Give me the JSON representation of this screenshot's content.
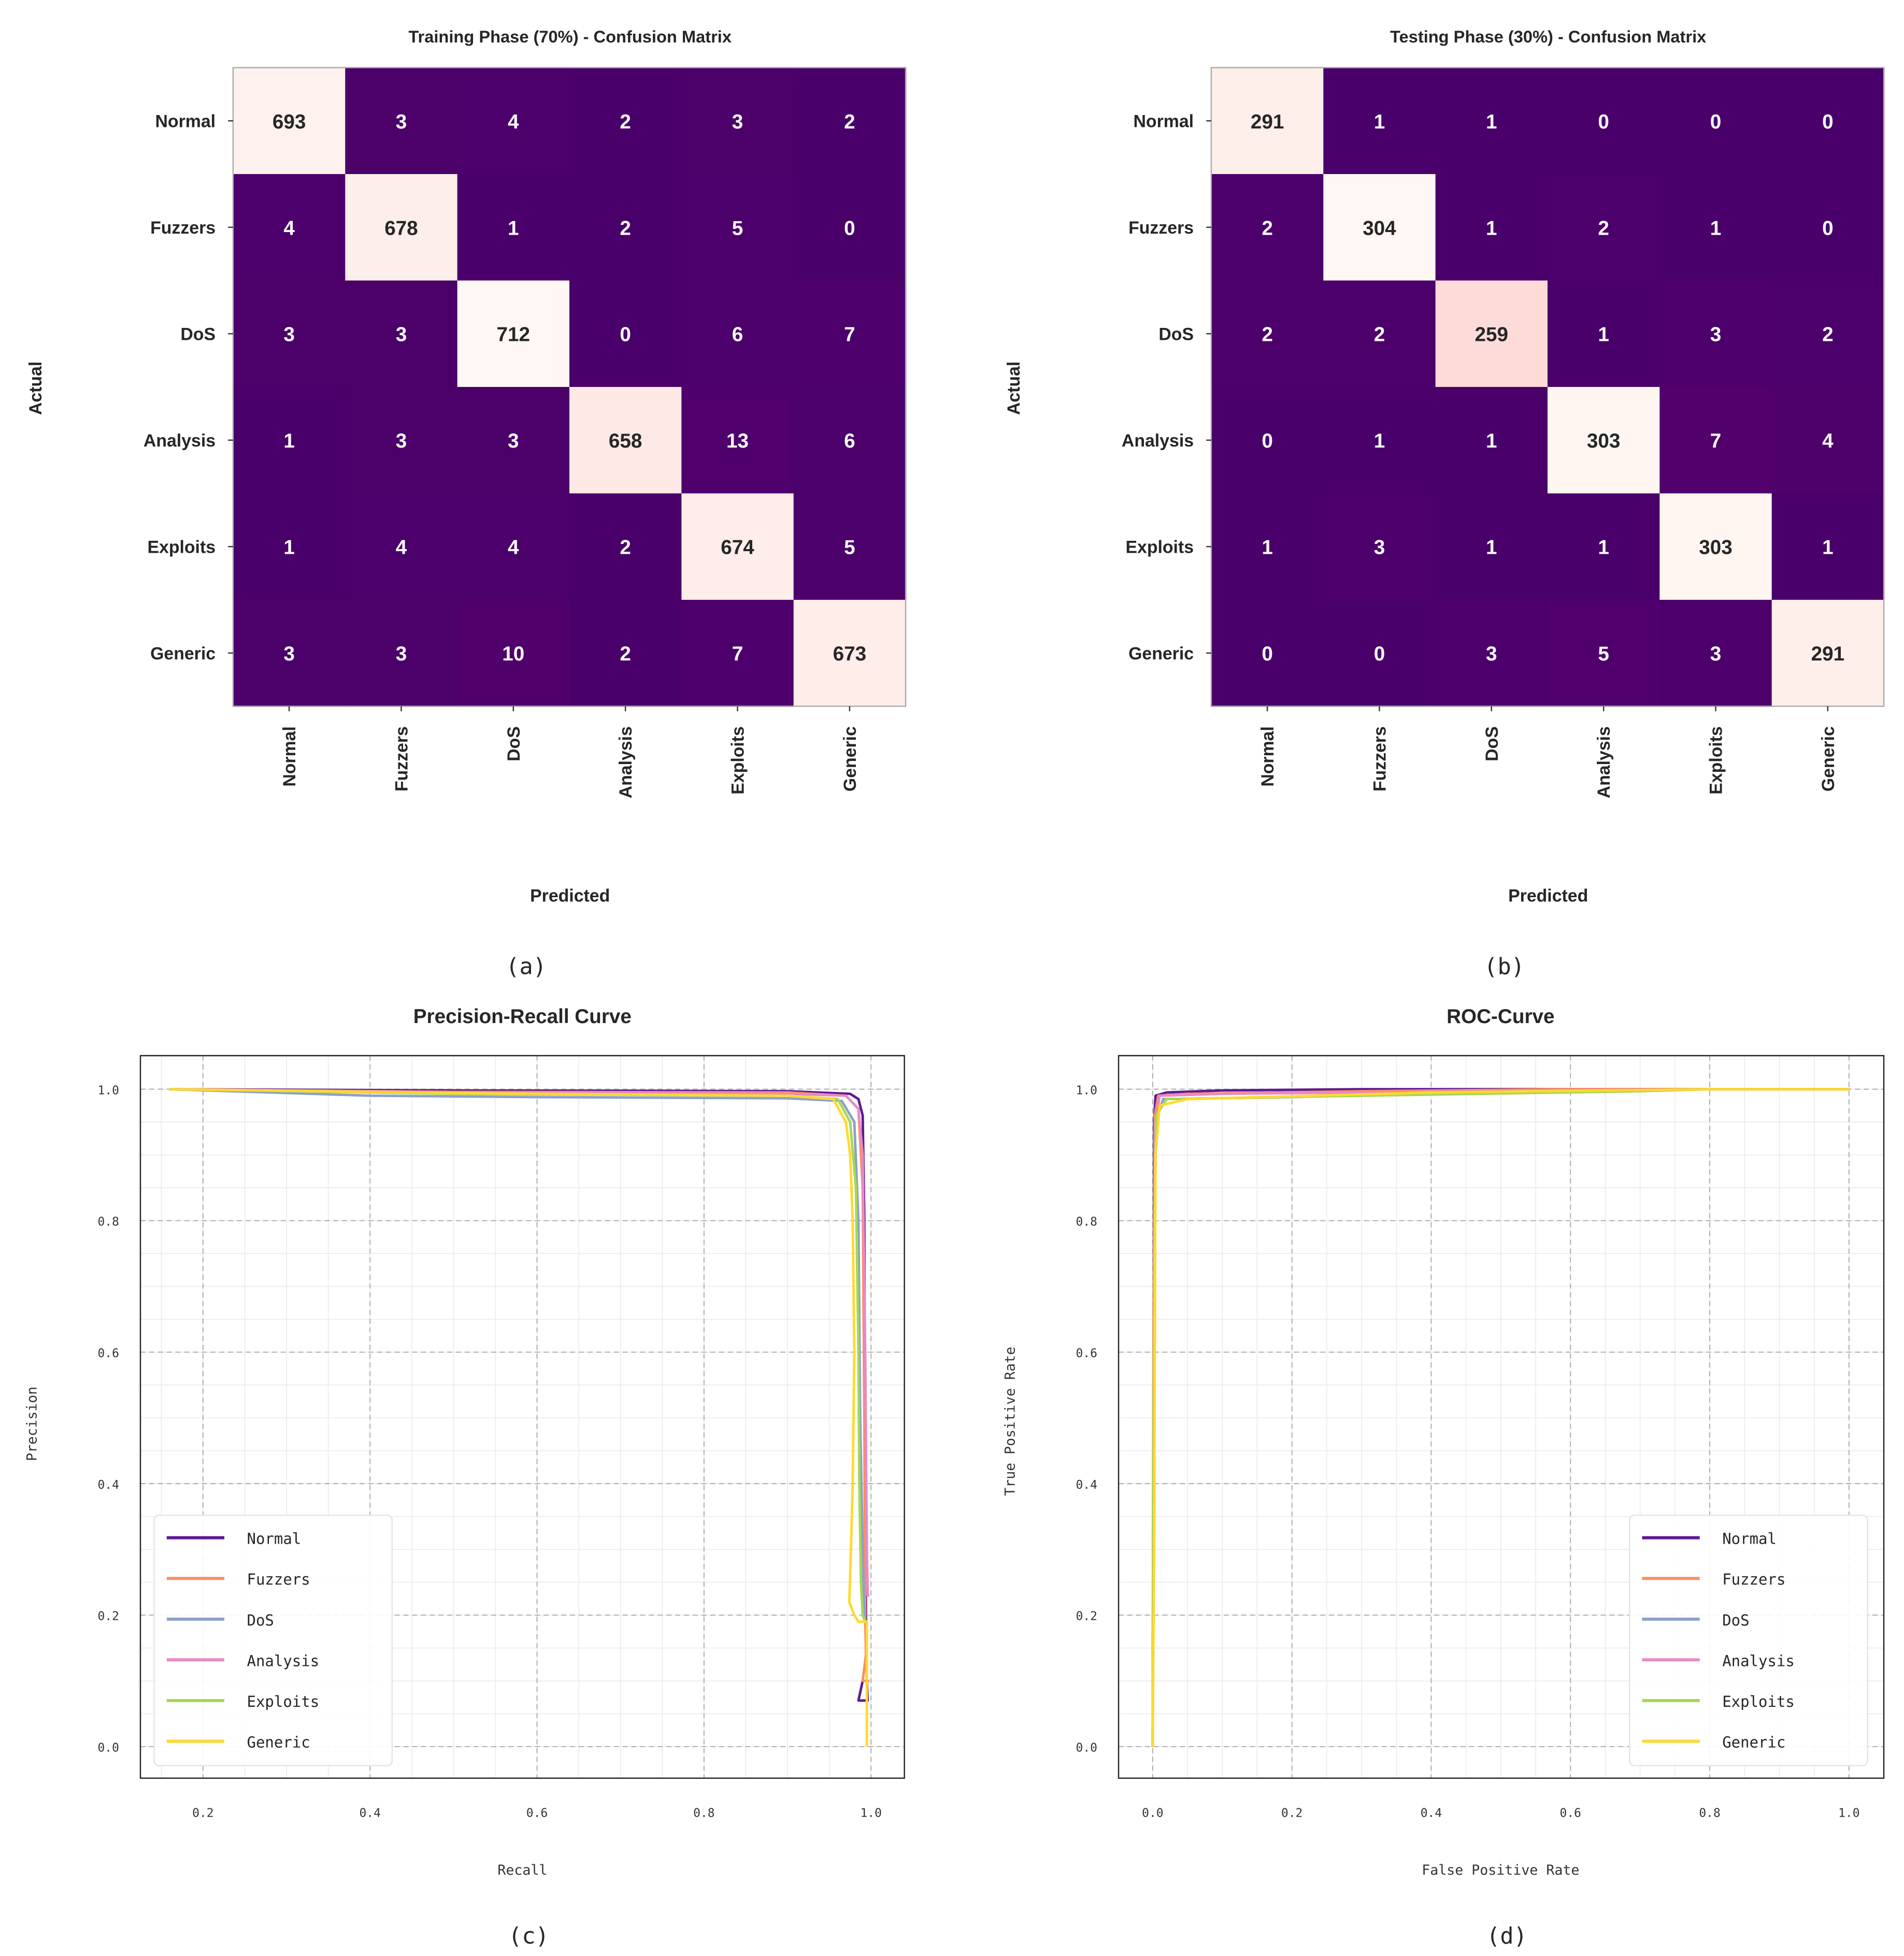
{
  "chart_data": [
    {
      "type": "heatmap",
      "title": "Training Phase (70%) - Confusion Matrix",
      "xlabel": "Predicted",
      "ylabel": "Actual",
      "panel": "(a)",
      "labels": [
        "Normal",
        "Fuzzers",
        "DoS",
        "Analysis",
        "Exploits",
        "Generic"
      ],
      "matrix": [
        [
          693,
          3,
          4,
          2,
          3,
          2
        ],
        [
          4,
          678,
          1,
          2,
          5,
          0
        ],
        [
          3,
          3,
          712,
          0,
          6,
          7
        ],
        [
          1,
          3,
          3,
          658,
          13,
          6
        ],
        [
          1,
          4,
          4,
          2,
          674,
          5
        ],
        [
          3,
          3,
          10,
          2,
          7,
          673
        ]
      ],
      "colormap": "RdPu_r"
    },
    {
      "type": "heatmap",
      "title": "Testing Phase (30%) - Confusion Matrix",
      "xlabel": "Predicted",
      "ylabel": "Actual",
      "panel": "(b)",
      "labels": [
        "Normal",
        "Fuzzers",
        "DoS",
        "Analysis",
        "Exploits",
        "Generic"
      ],
      "matrix": [
        [
          291,
          1,
          1,
          0,
          0,
          0
        ],
        [
          2,
          304,
          1,
          2,
          1,
          0
        ],
        [
          2,
          2,
          259,
          1,
          3,
          2
        ],
        [
          0,
          1,
          1,
          303,
          7,
          4
        ],
        [
          1,
          3,
          1,
          1,
          303,
          1
        ],
        [
          0,
          0,
          3,
          5,
          3,
          291
        ]
      ],
      "colormap": "RdPu_r"
    },
    {
      "type": "line",
      "title": "Precision-Recall Curve",
      "xlabel": "Recall",
      "ylabel": "Precision",
      "panel": "(c)",
      "xlim": [
        0.125,
        1.04
      ],
      "ylim": [
        -0.048,
        1.051
      ],
      "xticks": [
        "0.2",
        "0.4",
        "0.6",
        "0.8",
        "1.0"
      ],
      "xtick_values": [
        0.2,
        0.4,
        0.6,
        0.8,
        1.0
      ],
      "yticks": [
        "0.0",
        "0.2",
        "0.4",
        "0.6",
        "0.8",
        "1.0"
      ],
      "ytick_values": [
        0.0,
        0.2,
        0.4,
        0.6,
        0.8,
        1.0
      ],
      "grid": true,
      "legend_position": "lower-left",
      "series": [
        {
          "name": "Normal",
          "color": "#5c1a94",
          "points": [
            [
              0.16,
              1.0
            ],
            [
              0.5,
              0.998
            ],
            [
              0.9,
              0.997
            ],
            [
              0.975,
              0.993
            ],
            [
              0.985,
              0.985
            ],
            [
              0.99,
              0.96
            ],
            [
              0.992,
              0.8
            ],
            [
              0.993,
              0.4
            ],
            [
              0.994,
              0.2
            ],
            [
              0.995,
              0.1
            ],
            [
              0.996,
              0.07
            ],
            [
              0.985,
              0.07
            ],
            [
              0.99,
              0.1
            ]
          ]
        },
        {
          "name": "Fuzzers",
          "color": "#fc8d62",
          "points": [
            [
              0.16,
              1.0
            ],
            [
              0.5,
              0.996
            ],
            [
              0.9,
              0.995
            ],
            [
              0.97,
              0.99
            ],
            [
              0.985,
              0.97
            ],
            [
              0.99,
              0.85
            ],
            [
              0.992,
              0.5
            ],
            [
              0.993,
              0.2
            ],
            [
              0.994,
              0.14
            ],
            [
              0.99,
              0.1
            ],
            [
              0.998,
              0.1
            ]
          ]
        },
        {
          "name": "DoS",
          "color": "#8da0cb",
          "points": [
            [
              0.16,
              1.0
            ],
            [
              0.4,
              0.99
            ],
            [
              0.6,
              0.988
            ],
            [
              0.9,
              0.986
            ],
            [
              0.965,
              0.982
            ],
            [
              0.98,
              0.95
            ],
            [
              0.985,
              0.8
            ],
            [
              0.987,
              0.5
            ],
            [
              0.99,
              0.3
            ],
            [
              0.992,
              0.2
            ],
            [
              0.995,
              0.18
            ]
          ]
        },
        {
          "name": "Analysis",
          "color": "#e78ac3",
          "points": [
            [
              0.16,
              1.0
            ],
            [
              0.5,
              0.995
            ],
            [
              0.9,
              0.993
            ],
            [
              0.97,
              0.99
            ],
            [
              0.985,
              0.97
            ],
            [
              0.99,
              0.9
            ],
            [
              0.993,
              0.6
            ],
            [
              0.995,
              0.3
            ],
            [
              0.996,
              0.23
            ],
            [
              0.998,
              0.23
            ]
          ]
        },
        {
          "name": "Exploits",
          "color": "#a6d854",
          "points": [
            [
              0.16,
              1.0
            ],
            [
              0.5,
              0.993
            ],
            [
              0.9,
              0.99
            ],
            [
              0.96,
              0.985
            ],
            [
              0.975,
              0.95
            ],
            [
              0.982,
              0.85
            ],
            [
              0.985,
              0.6
            ],
            [
              0.986,
              0.4
            ],
            [
              0.988,
              0.25
            ],
            [
              0.99,
              0.2
            ],
            [
              0.993,
              0.19
            ]
          ]
        },
        {
          "name": "Generic",
          "color": "#ffd92f",
          "points": [
            [
              0.16,
              1.0
            ],
            [
              0.5,
              0.994
            ],
            [
              0.9,
              0.99
            ],
            [
              0.955,
              0.985
            ],
            [
              0.97,
              0.95
            ],
            [
              0.975,
              0.9
            ],
            [
              0.978,
              0.8
            ],
            [
              0.98,
              0.6
            ],
            [
              0.978,
              0.4
            ],
            [
              0.976,
              0.3
            ],
            [
              0.974,
              0.22
            ],
            [
              0.98,
              0.2
            ],
            [
              0.985,
              0.19
            ],
            [
              0.995,
              0.19
            ],
            [
              0.995,
              0.0
            ]
          ]
        }
      ]
    },
    {
      "type": "line",
      "title": "ROC-Curve",
      "xlabel": "False Positive Rate",
      "ylabel": "True Positive Rate",
      "panel": "(d)",
      "xlim": [
        -0.049,
        1.05
      ],
      "ylim": [
        -0.048,
        1.051
      ],
      "xticks": [
        "0.0",
        "0.2",
        "0.4",
        "0.6",
        "0.8",
        "1.0"
      ],
      "xtick_values": [
        0.0,
        0.2,
        0.4,
        0.6,
        0.8,
        1.0
      ],
      "yticks": [
        "0.0",
        "0.2",
        "0.4",
        "0.6",
        "0.8",
        "1.0"
      ],
      "ytick_values": [
        0.0,
        0.2,
        0.4,
        0.6,
        0.8,
        1.0
      ],
      "grid": true,
      "legend_position": "lower-right",
      "series": [
        {
          "name": "Normal",
          "color": "#5c1a94",
          "points": [
            [
              0,
              0
            ],
            [
              0.001,
              0.5
            ],
            [
              0.002,
              0.95
            ],
            [
              0.004,
              0.99
            ],
            [
              0.02,
              0.995
            ],
            [
              0.1,
              0.998
            ],
            [
              0.3,
              1.0
            ],
            [
              1,
              1
            ]
          ]
        },
        {
          "name": "Fuzzers",
          "color": "#fc8d62",
          "points": [
            [
              0,
              0
            ],
            [
              0.001,
              0.6
            ],
            [
              0.003,
              0.96
            ],
            [
              0.008,
              0.99
            ],
            [
              0.05,
              0.993
            ],
            [
              0.3,
              0.997
            ],
            [
              0.6,
              1.0
            ],
            [
              1,
              1
            ]
          ]
        },
        {
          "name": "DoS",
          "color": "#8da0cb",
          "points": [
            [
              0,
              0
            ],
            [
              0.002,
              0.5
            ],
            [
              0.004,
              0.95
            ],
            [
              0.015,
              0.985
            ],
            [
              0.2,
              0.988
            ],
            [
              0.4,
              0.995
            ],
            [
              0.8,
              1.0
            ],
            [
              1,
              1
            ]
          ]
        },
        {
          "name": "Analysis",
          "color": "#e78ac3",
          "points": [
            [
              0,
              0
            ],
            [
              0.001,
              0.4
            ],
            [
              0.003,
              0.94
            ],
            [
              0.01,
              0.99
            ],
            [
              0.1,
              0.993
            ],
            [
              0.5,
              0.997
            ],
            [
              0.8,
              1.0
            ],
            [
              1,
              1
            ]
          ]
        },
        {
          "name": "Exploits",
          "color": "#a6d854",
          "points": [
            [
              0,
              0
            ],
            [
              0.002,
              0.7
            ],
            [
              0.005,
              0.96
            ],
            [
              0.02,
              0.985
            ],
            [
              0.3,
              0.99
            ],
            [
              0.7,
              0.997
            ],
            [
              0.8,
              1.0
            ],
            [
              1,
              1
            ]
          ]
        },
        {
          "name": "Generic",
          "color": "#ffd92f",
          "points": [
            [
              0,
              0
            ],
            [
              0.002,
              0.3
            ],
            [
              0.004,
              0.9
            ],
            [
              0.01,
              0.975
            ],
            [
              0.05,
              0.985
            ],
            [
              0.4,
              0.995
            ],
            [
              0.8,
              1.0
            ],
            [
              1,
              1
            ]
          ]
        }
      ]
    }
  ]
}
